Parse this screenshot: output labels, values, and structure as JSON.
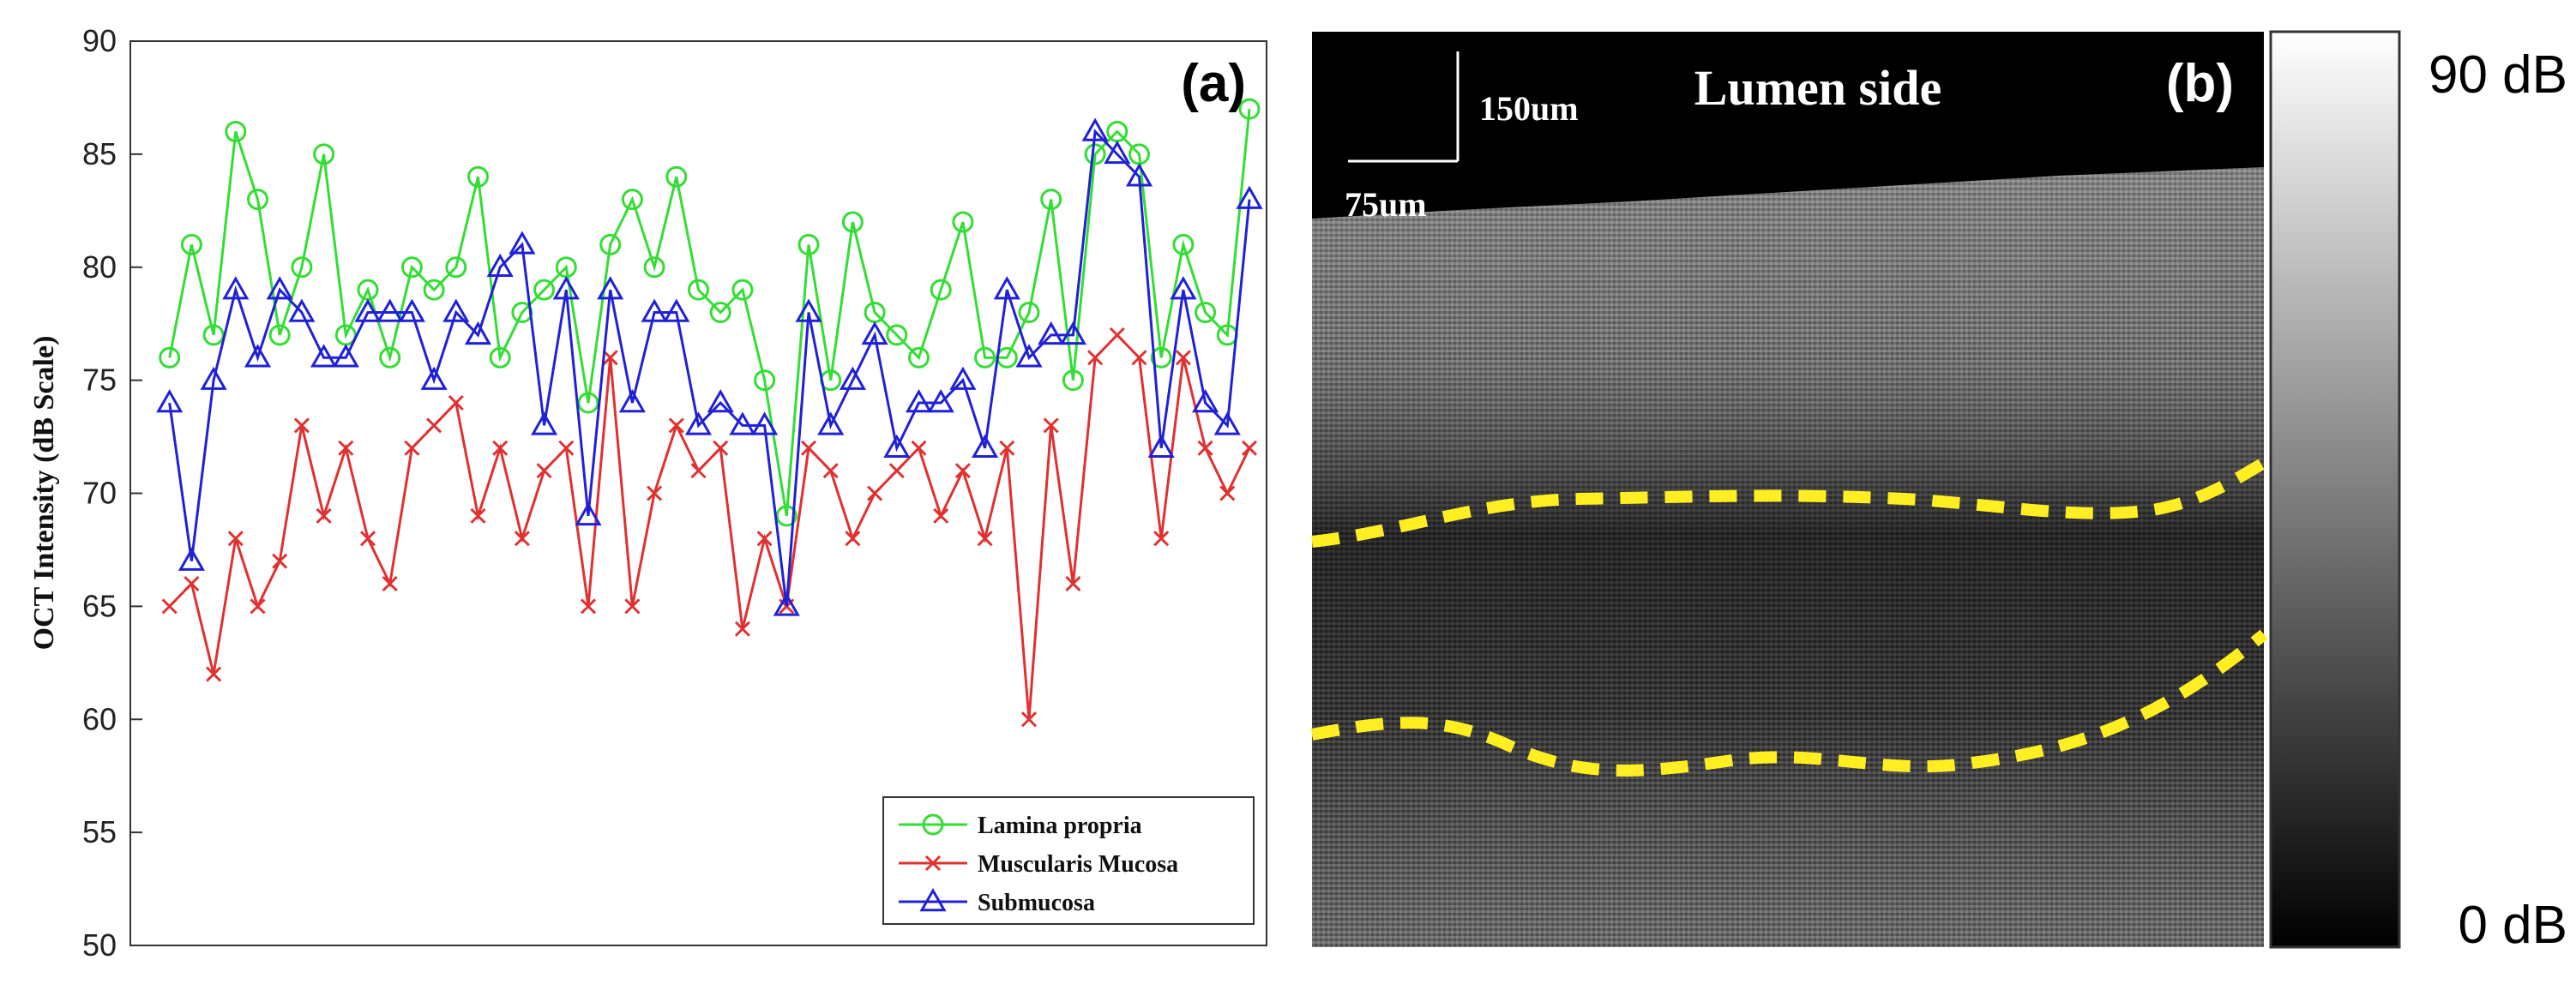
{
  "panel_a": {
    "panel_label": "(a)",
    "colors": {
      "lamina": "#33dd33",
      "muscularis": "#e03030",
      "submucosa": "#2020d8"
    }
  },
  "panel_b": {
    "panel_label": "(b)",
    "title": "Lumen side",
    "scale_vertical": "150um",
    "scale_horizontal": "75um",
    "colorbar_max": "90 dB",
    "colorbar_min": "0 dB",
    "boundary_color": "#ffee22"
  },
  "chart_data": {
    "type": "line",
    "title": "",
    "xlabel": "",
    "ylabel": "OCT Intensity (dB Scale)",
    "ylim": [
      50,
      90
    ],
    "yticks": [
      50,
      55,
      60,
      65,
      70,
      75,
      80,
      85,
      90
    ],
    "xlim": [
      0,
      50
    ],
    "grid": false,
    "legend_position": "bottom-right",
    "series": [
      {
        "name": "Lamina propria",
        "marker": "circle",
        "color": "#33dd33",
        "x": [
          1,
          2,
          3,
          4,
          5,
          6,
          7,
          8,
          9,
          10,
          11,
          12,
          13,
          14,
          15,
          16,
          17,
          18,
          19,
          20,
          21,
          22,
          23,
          24,
          25,
          26,
          27,
          28,
          29,
          30,
          31,
          32,
          33,
          34,
          35,
          36,
          37,
          38,
          39,
          40,
          41,
          42,
          43,
          44,
          45,
          46,
          47,
          48,
          49,
          50
        ],
        "values": [
          76,
          81,
          77,
          86,
          83,
          77,
          80,
          85,
          77,
          79,
          76,
          80,
          79,
          80,
          84,
          76,
          78,
          79,
          80,
          74,
          81,
          83,
          80,
          84,
          79,
          78,
          79,
          75,
          69,
          81,
          75,
          82,
          78,
          77,
          76,
          79,
          82,
          76,
          76,
          78,
          83,
          75,
          85,
          86,
          85,
          76,
          81,
          78,
          77,
          87
        ]
      },
      {
        "name": "Muscularis Mucosa",
        "marker": "x",
        "color": "#e03030",
        "x": [
          1,
          2,
          3,
          4,
          5,
          6,
          7,
          8,
          9,
          10,
          11,
          12,
          13,
          14,
          15,
          16,
          17,
          18,
          19,
          20,
          21,
          22,
          23,
          24,
          25,
          26,
          27,
          28,
          29,
          30,
          31,
          32,
          33,
          34,
          35,
          36,
          37,
          38,
          39,
          40,
          41,
          42,
          43,
          44,
          45,
          46,
          47,
          48,
          49,
          50
        ],
        "values": [
          65,
          66,
          62,
          68,
          65,
          67,
          73,
          69,
          72,
          68,
          66,
          72,
          73,
          74,
          69,
          72,
          68,
          71,
          72,
          65,
          76,
          65,
          70,
          73,
          71,
          72,
          64,
          68,
          65,
          72,
          71,
          68,
          70,
          71,
          72,
          69,
          71,
          68,
          72,
          60,
          73,
          66,
          76,
          77,
          76,
          68,
          76,
          72,
          70,
          72
        ]
      },
      {
        "name": "Submucosa",
        "marker": "triangle",
        "color": "#2020d8",
        "x": [
          1,
          2,
          3,
          4,
          5,
          6,
          7,
          8,
          9,
          10,
          11,
          12,
          13,
          14,
          15,
          16,
          17,
          18,
          19,
          20,
          21,
          22,
          23,
          24,
          25,
          26,
          27,
          28,
          29,
          30,
          31,
          32,
          33,
          34,
          35,
          36,
          37,
          38,
          39,
          40,
          41,
          42,
          43,
          44,
          45,
          46,
          47,
          48,
          49,
          50
        ],
        "values": [
          74,
          67,
          75,
          79,
          76,
          79,
          78,
          76,
          76,
          78,
          78,
          78,
          75,
          78,
          77,
          80,
          81,
          73,
          79,
          69,
          79,
          74,
          78,
          78,
          73,
          74,
          73,
          73,
          65,
          78,
          73,
          75,
          77,
          72,
          74,
          74,
          75,
          72,
          79,
          76,
          77,
          77,
          86,
          85,
          84,
          72,
          79,
          74,
          73,
          83
        ]
      }
    ]
  }
}
